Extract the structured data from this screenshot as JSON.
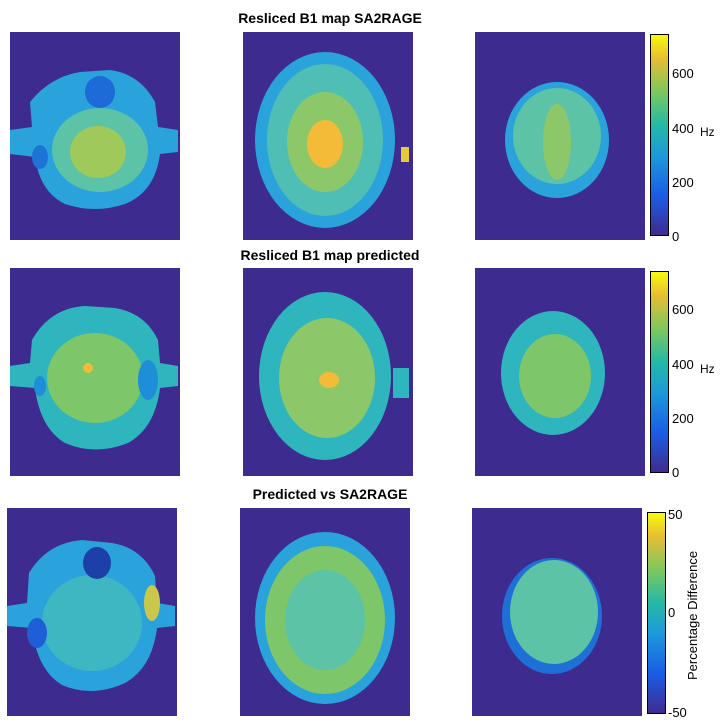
{
  "rows": [
    {
      "title": "Resliced B1 map SA2RAGE",
      "colorbar": {
        "ticks": [
          "600",
          "400",
          "200",
          "0"
        ],
        "unit": "Hz"
      }
    },
    {
      "title": "Resliced B1 map predicted",
      "colorbar": {
        "ticks": [
          "600",
          "400",
          "200",
          "0"
        ],
        "unit": "Hz"
      }
    },
    {
      "title": "Predicted vs SA2RAGE",
      "colorbar": {
        "ticks": [
          "50",
          "0",
          "-50"
        ],
        "label": "Percentage Difference"
      }
    }
  ],
  "colors": {
    "background": "#3e2b8f",
    "colormap": "parula"
  }
}
